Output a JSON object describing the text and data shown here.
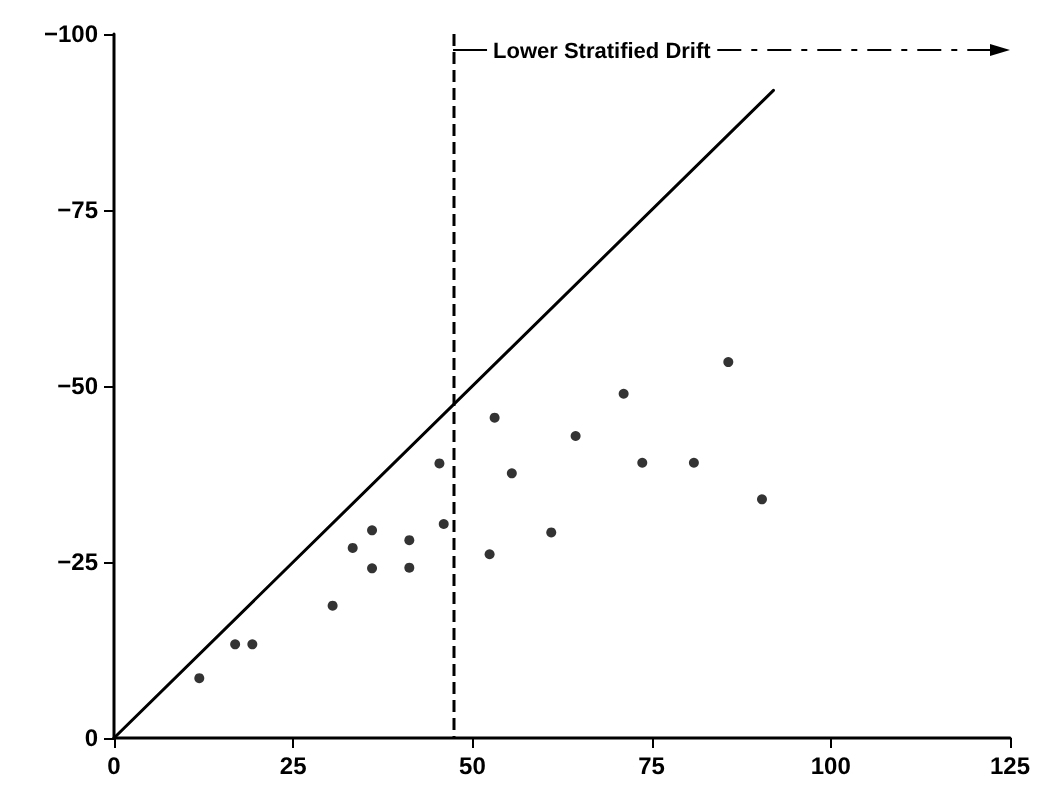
{
  "chart_data": {
    "type": "scatter",
    "series": [
      {
        "color": "#000000",
        "marker": "circle",
        "x": [
          11.9,
          16.9,
          19.3,
          30.5,
          33.3,
          36.0,
          36.0,
          41.2,
          41.2,
          45.4,
          46.0,
          52.4,
          53.1,
          55.5,
          61.0,
          64.4,
          71.1,
          73.7,
          80.9,
          85.7,
          90.4
        ],
        "values": [
          -8.5,
          -13.3,
          -13.3,
          -18.8,
          -27.0,
          -29.5,
          -24.1,
          -28.1,
          -24.2,
          -39.0,
          -30.4,
          -26.1,
          -45.5,
          -37.6,
          -29.2,
          -42.9,
          -48.9,
          -39.1,
          -39.1,
          -53.4,
          -33.9
        ]
      },
      {
        "type": "line",
        "color": "#000000",
        "marker": "none",
        "line_style": "solid",
        "x": [
          0,
          92
        ],
        "values": [
          0,
          -92
        ]
      }
    ],
    "xlim": [
      0,
      125
    ],
    "xticks": [
      0,
      25,
      50,
      75,
      100,
      125
    ],
    "ylim": [
      0,
      -100
    ],
    "yticks": [
      0,
      -25,
      -50,
      -75,
      -100
    ],
    "grid": false,
    "ref_lines": [
      {
        "axis": "x",
        "value": 47.3,
        "label": "Lower Stratified Drift",
        "line_style": "dashed",
        "color": "#000000"
      }
    ]
  }
}
